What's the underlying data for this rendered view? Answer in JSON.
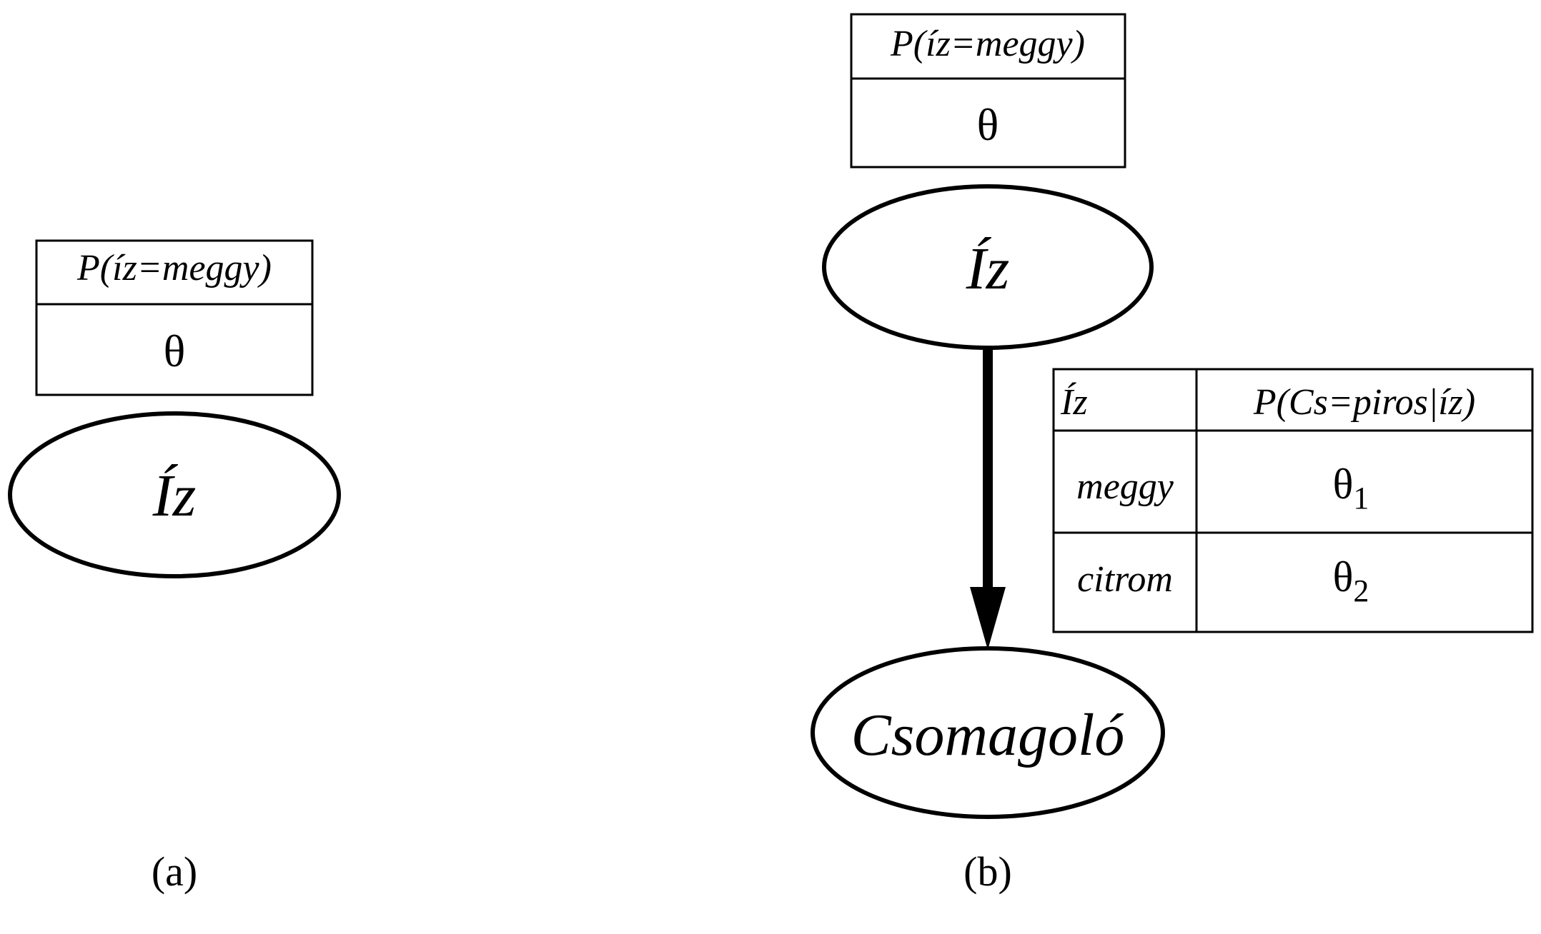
{
  "panel_a": {
    "cpt_header": "P(íz=meggy)",
    "cpt_value": "θ",
    "node_label": "Íz",
    "caption": "(a)"
  },
  "panel_b": {
    "top_cpt_header": "P(íz=meggy)",
    "top_cpt_value": "θ",
    "node_iz_label": "Íz",
    "node_cs_label": "Csomagoló",
    "cond_table": {
      "col_parent": "Íz",
      "col_prob": "P(Cs=piros|íz)",
      "rows": [
        {
          "parent": "meggy",
          "theta": "θ",
          "sub": "1"
        },
        {
          "parent": "citrom",
          "theta": "θ",
          "sub": "2"
        }
      ]
    },
    "caption": "(b)"
  }
}
